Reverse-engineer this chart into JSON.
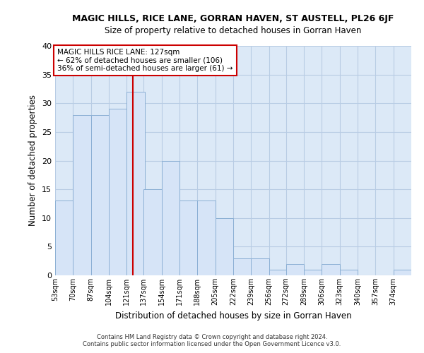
{
  "title": "MAGIC HILLS, RICE LANE, GORRAN HAVEN, ST AUSTELL, PL26 6JF",
  "subtitle": "Size of property relative to detached houses in Gorran Haven",
  "xlabel": "Distribution of detached houses by size in Gorran Haven",
  "ylabel": "Number of detached properties",
  "bar_color": "#d6e4f7",
  "bar_edge_color": "#8bafd4",
  "grid_color": "#b8cce4",
  "background_color": "#dce9f7",
  "vline_color": "#cc0000",
  "vline_x": 127,
  "annotation_line1": "MAGIC HILLS RICE LANE: 127sqm",
  "annotation_line2": "← 62% of detached houses are smaller (106)",
  "annotation_line3": "36% of semi-detached houses are larger (61) →",
  "annotation_box_color": "#ffffff",
  "annotation_box_edge_color": "#cc0000",
  "footnote": "Contains HM Land Registry data © Crown copyright and database right 2024.\nContains public sector information licensed under the Open Government Licence v3.0.",
  "bins": [
    53,
    70,
    87,
    104,
    121,
    137,
    154,
    171,
    188,
    205,
    222,
    239,
    256,
    272,
    289,
    306,
    323,
    340,
    357,
    374,
    391
  ],
  "values": [
    13,
    28,
    28,
    29,
    32,
    15,
    20,
    13,
    13,
    10,
    3,
    3,
    1,
    2,
    1,
    2,
    1,
    0,
    0,
    1
  ],
  "ylim": [
    0,
    40
  ],
  "yticks": [
    0,
    5,
    10,
    15,
    20,
    25,
    30,
    35,
    40
  ]
}
